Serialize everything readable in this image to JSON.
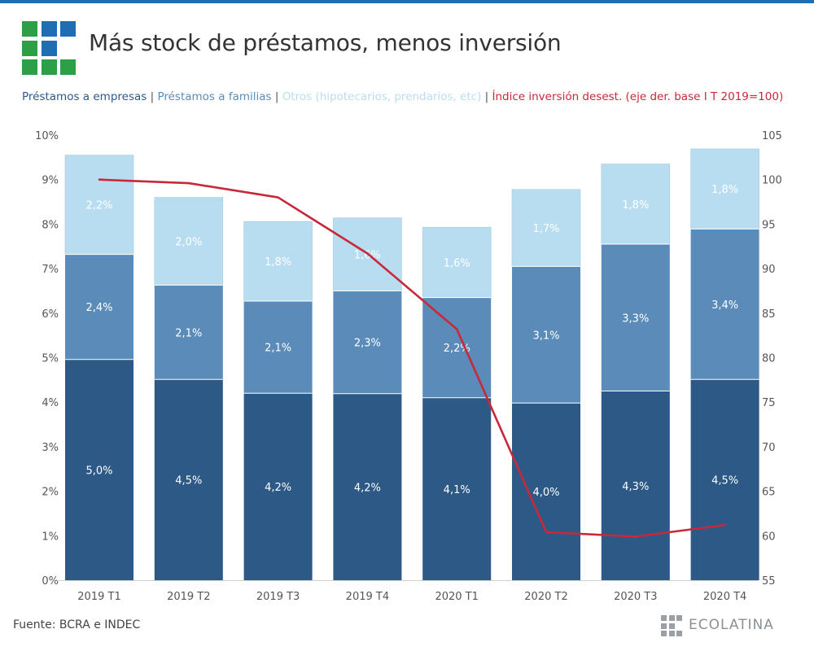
{
  "header": {
    "title": "Más stock de préstamos, menos inversión",
    "logo_colors": [
      "#2e9e47",
      "#1f6db3"
    ]
  },
  "legend": {
    "items": [
      {
        "label": "Préstamos a empresas",
        "color": "#2d5986"
      },
      {
        "label": "Préstamos a familias",
        "color": "#5b8cb9"
      },
      {
        "label": "Otros (hipotecarios, prendarios, etc)",
        "color": "#b9ddf0"
      },
      {
        "label": "Índice inversión desest. (eje der. base I T 2019=100)",
        "color": "#c8283a"
      }
    ],
    "separator": "|"
  },
  "footer": {
    "source": "Fuente: BCRA e INDEC",
    "brand": "ECOLATINA"
  },
  "chart_data": {
    "type": "bar",
    "stacked": true,
    "categories": [
      "2019 T1",
      "2019 T2",
      "2019 T3",
      "2019 T4",
      "2020 T1",
      "2020 T2",
      "2020 T3",
      "2020 T4"
    ],
    "series": [
      {
        "name": "Préstamos a empresas",
        "color": "#2d5986",
        "label_color": "#ffffff",
        "values": [
          4.96,
          4.51,
          4.2,
          4.19,
          4.1,
          3.98,
          4.25,
          4.51
        ],
        "labels": [
          "5,0%",
          "4,5%",
          "4,2%",
          "4,2%",
          "4,1%",
          "4,0%",
          "4,3%",
          "4,5%"
        ]
      },
      {
        "name": "Préstamos a familias",
        "color": "#5b8cb9",
        "label_color": "#ffffff",
        "values": [
          2.36,
          2.12,
          2.07,
          2.31,
          2.25,
          3.07,
          3.3,
          3.38
        ],
        "labels": [
          "2,4%",
          "2,1%",
          "2,1%",
          "2,3%",
          "2,2%",
          "3,1%",
          "3,3%",
          "3,4%"
        ]
      },
      {
        "name": "Otros (hipotecarios, prendarios, etc)",
        "color": "#b9ddf0",
        "label_color": "#ffffff",
        "values": [
          2.23,
          1.97,
          1.79,
          1.64,
          1.58,
          1.73,
          1.8,
          1.8
        ],
        "labels": [
          "2,2%",
          "2,0%",
          "1,8%",
          "1,6%",
          "1,6%",
          "1,7%",
          "1,8%",
          "1,8%"
        ]
      }
    ],
    "line": {
      "name": "Índice inversión desest. (eje der. base I T 2019=100)",
      "color": "#c8283a",
      "axis": "right",
      "values": [
        100,
        99.6,
        98,
        91.7,
        83.2,
        60.4,
        59.9,
        61.2
      ]
    },
    "y_left": {
      "min": 0,
      "max": 10,
      "ticks": [
        "0%",
        "1%",
        "2%",
        "3%",
        "4%",
        "5%",
        "6%",
        "7%",
        "8%",
        "9%",
        "10%"
      ]
    },
    "y_right": {
      "min": 55,
      "max": 105,
      "ticks": [
        "55",
        "60",
        "65",
        "70",
        "75",
        "80",
        "85",
        "90",
        "95",
        "100",
        "105"
      ]
    },
    "grid": false,
    "legend_position": "top"
  }
}
